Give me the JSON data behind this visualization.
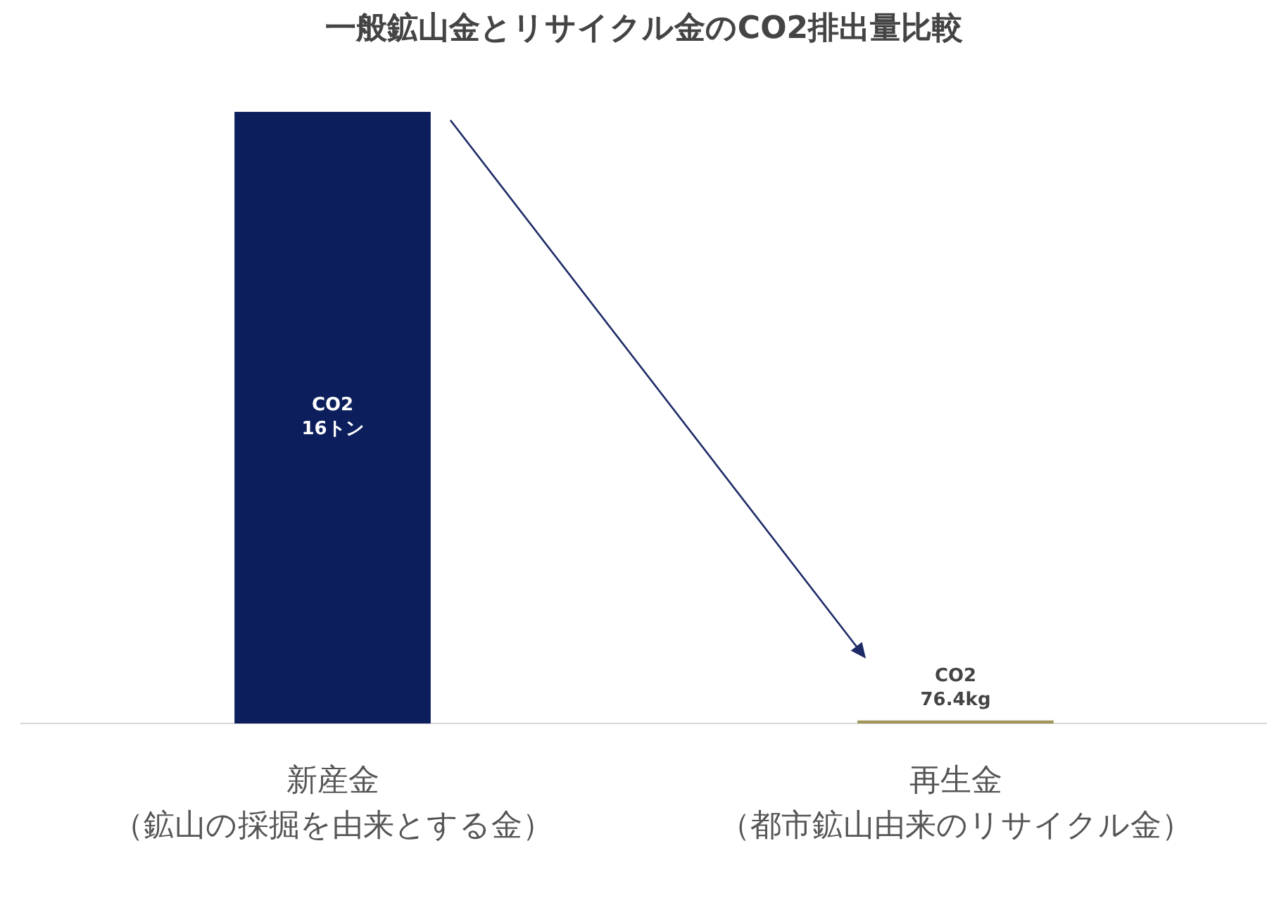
{
  "chart_data": {
    "type": "bar",
    "title": "一般鉱山金とリサイクル金のCO2排出量比較",
    "categories": [
      "新産金（鉱山の採掘を由来とする金）",
      "再生金（都市鉱山由来のリサイクル金）"
    ],
    "values": [
      16000,
      76.4
    ],
    "value_labels": [
      "CO2\n16トン",
      "CO2\n76.4kg"
    ],
    "colors": [
      "#0c1f5c",
      "#a0955a"
    ],
    "grid": false,
    "legend": false
  }
}
